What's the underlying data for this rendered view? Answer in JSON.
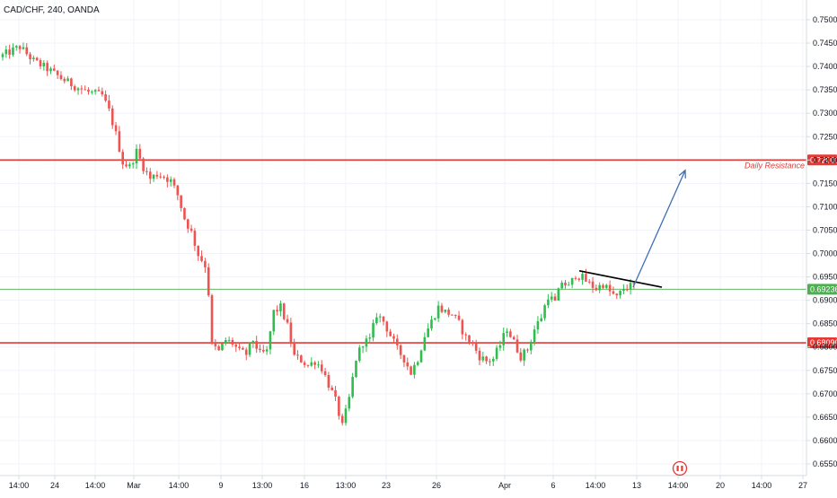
{
  "chart_data": {
    "type": "candlestick",
    "title": "CAD/CHF, 240, OANDA",
    "colors": {
      "up": "#26a69a",
      "up_bright": "#2ebd4e",
      "down": "#ef5350",
      "resistance": "#e53935",
      "current_line": "#4caf50",
      "trendline": "#000000",
      "arrow": "#3f6fb5",
      "grid": "#f0f3fa",
      "axis": "#d6dcde"
    },
    "y_axis": {
      "range": [
        0.654,
        0.7515
      ],
      "ticks": [
        "0.75000",
        "0.74500",
        "0.74000",
        "0.73500",
        "0.73000",
        "0.72500",
        "0.72000",
        "0.71500",
        "0.71000",
        "0.70500",
        "0.70000",
        "0.69500",
        "0.69000",
        "0.68500",
        "0.68000",
        "0.67500",
        "0.67000",
        "0.66500",
        "0.66000",
        "0.65500"
      ]
    },
    "x_axis": {
      "ticks": [
        "14:00",
        "24",
        "14:00",
        "Mar",
        "14:00",
        "9",
        "13:00",
        "16",
        "13:00",
        "23",
        "26",
        "Apr",
        "6",
        "14:00",
        "13",
        "14:00",
        "20",
        "14:00",
        "27"
      ]
    },
    "levels": [
      {
        "value": 0.72001,
        "label": "0.72001",
        "annotation": "Daily Resistance",
        "style": "resistance"
      },
      {
        "value": 0.6809,
        "label": "0.68090",
        "annotation": "",
        "style": "resistance"
      },
      {
        "value": 0.69236,
        "label": "0.69236",
        "annotation": "",
        "style": "current"
      }
    ],
    "trendline": {
      "from": 0.6963,
      "to": 0.6928
    },
    "projection_arrow": {
      "from": 0.6928,
      "to": 0.7178
    },
    "path": [
      [
        0,
        0.742
      ],
      [
        6,
        0.7442
      ],
      [
        10,
        0.7412
      ],
      [
        14,
        0.7395
      ],
      [
        18,
        0.7375
      ],
      [
        22,
        0.7358
      ],
      [
        26,
        0.7345
      ],
      [
        30,
        0.7338
      ],
      [
        32,
        0.7305
      ],
      [
        34,
        0.7255
      ],
      [
        36,
        0.7195
      ],
      [
        38,
        0.7185
      ],
      [
        40,
        0.7218
      ],
      [
        42,
        0.7185
      ],
      [
        44,
        0.716
      ],
      [
        46,
        0.717
      ],
      [
        48,
        0.7165
      ],
      [
        50,
        0.7155
      ],
      [
        52,
        0.7125
      ],
      [
        54,
        0.7075
      ],
      [
        56,
        0.7045
      ],
      [
        58,
        0.6998
      ],
      [
        60,
        0.6975
      ],
      [
        61,
        0.6915
      ],
      [
        62,
        0.6805
      ],
      [
        64,
        0.679
      ],
      [
        66,
        0.6815
      ],
      [
        68,
        0.6808
      ],
      [
        70,
        0.679
      ],
      [
        72,
        0.6785
      ],
      [
        74,
        0.6815
      ],
      [
        76,
        0.6785
      ],
      [
        78,
        0.679
      ],
      [
        80,
        0.6875
      ],
      [
        82,
        0.6885
      ],
      [
        84,
        0.6845
      ],
      [
        86,
        0.678
      ],
      [
        88,
        0.6772
      ],
      [
        90,
        0.676
      ],
      [
        92,
        0.677
      ],
      [
        94,
        0.6755
      ],
      [
        96,
        0.672
      ],
      [
        98,
        0.6685
      ],
      [
        100,
        0.663
      ],
      [
        102,
        0.669
      ],
      [
        104,
        0.6775
      ],
      [
        106,
        0.681
      ],
      [
        108,
        0.6815
      ],
      [
        110,
        0.687
      ],
      [
        112,
        0.6855
      ],
      [
        114,
        0.6825
      ],
      [
        116,
        0.6795
      ],
      [
        118,
        0.6775
      ],
      [
        120,
        0.6745
      ],
      [
        122,
        0.6775
      ],
      [
        124,
        0.6825
      ],
      [
        126,
        0.6855
      ],
      [
        128,
        0.6885
      ],
      [
        130,
        0.6875
      ],
      [
        132,
        0.687
      ],
      [
        134,
        0.685
      ],
      [
        136,
        0.682
      ],
      [
        138,
        0.6805
      ],
      [
        140,
        0.678
      ],
      [
        142,
        0.677
      ],
      [
        144,
        0.6775
      ],
      [
        146,
        0.6805
      ],
      [
        148,
        0.684
      ],
      [
        150,
        0.681
      ],
      [
        152,
        0.678
      ],
      [
        154,
        0.6795
      ],
      [
        156,
        0.6838
      ],
      [
        158,
        0.6865
      ],
      [
        160,
        0.691
      ],
      [
        162,
        0.6895
      ],
      [
        164,
        0.694
      ],
      [
        166,
        0.6928
      ],
      [
        168,
        0.6955
      ],
      [
        170,
        0.6948
      ],
      [
        172,
        0.6935
      ],
      [
        174,
        0.6925
      ],
      [
        176,
        0.6935
      ],
      [
        178,
        0.6918
      ],
      [
        180,
        0.6905
      ],
      [
        182,
        0.6925
      ],
      [
        184,
        0.693
      ]
    ]
  }
}
